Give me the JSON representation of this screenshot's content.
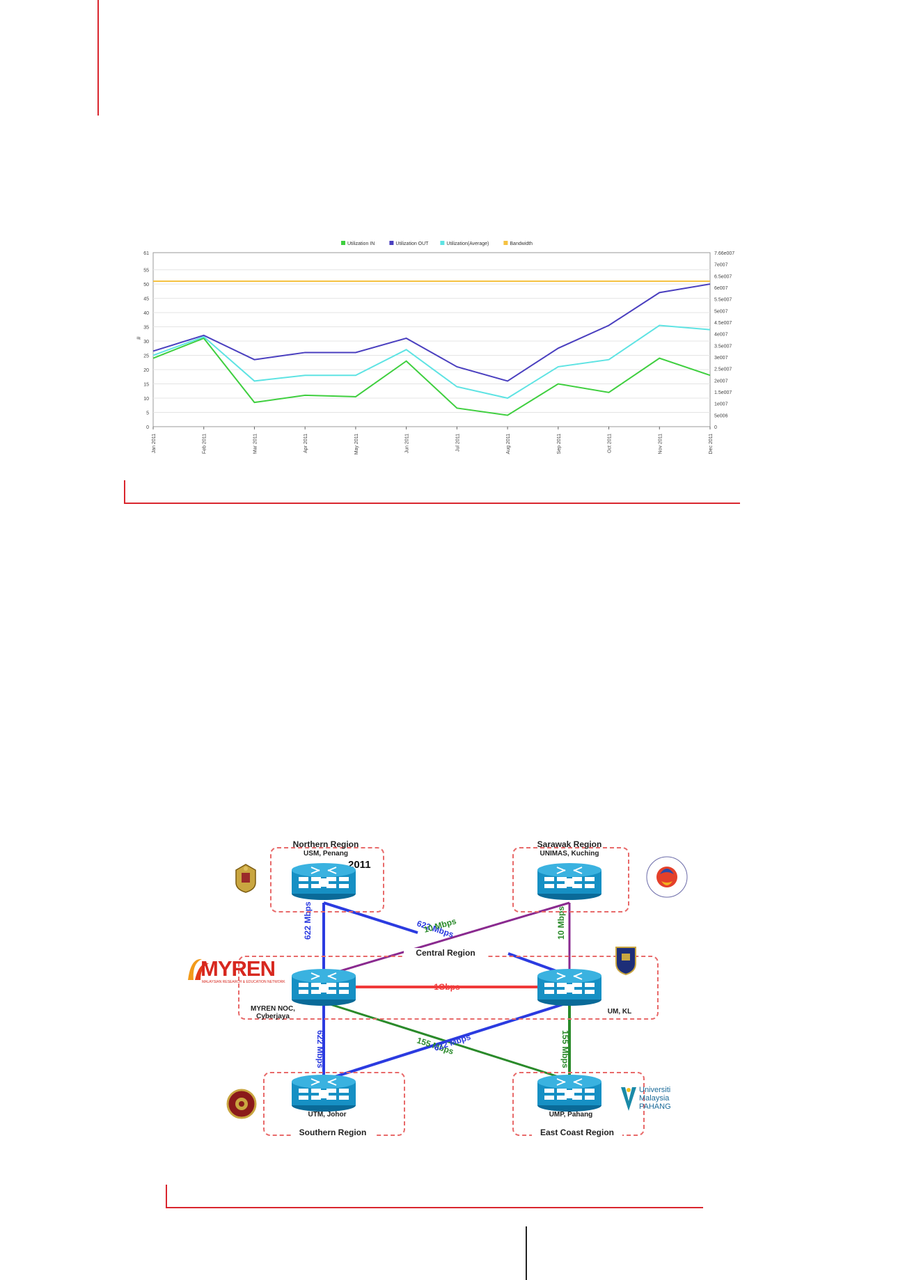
{
  "chart_data": {
    "type": "line",
    "categories": [
      "Jan 2011",
      "Feb 2011",
      "Mar 2011",
      "Apr 2011",
      "May 2011",
      "Jun 2011",
      "Jul 2011",
      "Aug 2011",
      "Sep 2011",
      "Oct 2011",
      "Nov 2011",
      "Dec 2011"
    ],
    "series": [
      {
        "name": "Utilization IN",
        "color": "#3fcf3f",
        "values": [
          24,
          31,
          8.5,
          11,
          10.5,
          23,
          6.5,
          4,
          15,
          12,
          24,
          18
        ]
      },
      {
        "name": "Utilization OUT",
        "color": "#4a3fbf",
        "values": [
          26.5,
          32,
          23.5,
          26,
          26,
          31,
          21,
          16,
          27.5,
          35.5,
          47,
          50
        ]
      },
      {
        "name": "Utilization(Average)",
        "color": "#5ee3e3",
        "values": [
          25,
          31.5,
          16,
          18,
          18,
          27,
          14,
          10,
          21,
          23.5,
          35.5,
          34
        ]
      },
      {
        "name": "Bandwidth",
        "color": "#f5c242",
        "values": [
          51,
          51,
          51,
          51,
          51,
          51,
          51,
          51,
          51,
          51,
          51,
          51
        ]
      }
    ],
    "ylabel": "#",
    "ylim": [
      0,
      61
    ],
    "yticks": [
      "0",
      "5",
      "10",
      "15",
      "20",
      "25",
      "30",
      "35",
      "40",
      "45",
      "50",
      "55",
      "61"
    ],
    "y2ticks": [
      "0",
      "5e006",
      "1e007",
      "1.5e007",
      "2e007",
      "2.5e007",
      "3e007",
      "3.5e007",
      "4e007",
      "4.5e007",
      "5e007",
      "5.5e007",
      "6e007",
      "6.5e007",
      "7e007",
      "7.66e007"
    ],
    "grid": true,
    "legend": "top"
  },
  "diagram": {
    "regions": {
      "northern": {
        "title": "Northern Region",
        "site": "USM, Penang",
        "badge": "2011"
      },
      "sarawak": {
        "title": "Sarawak Region",
        "site": "UNIMAS, Kuching"
      },
      "central": {
        "title": "Central Region"
      },
      "southern": {
        "title": "Southern Region",
        "site": "UTM, Johor"
      },
      "east": {
        "title": "East Coast Region",
        "site": "UMP, Pahang"
      }
    },
    "sites": {
      "noc": "MYREN NOC, Cyberjaya",
      "um": "UM, KL"
    },
    "links": {
      "usm_um": "622 Mbps",
      "unimas_noc": "10 Mbps",
      "usm_noc": "622 Mbps",
      "unimas_um": "10 Mbps",
      "noc_um": "1Gbps",
      "noc_utm": "622 Mbps",
      "noc_ump": "155 Mbps",
      "um_utm": "622 Mbps",
      "um_ump": "155 Mbps"
    },
    "logos": {
      "myren": "MYREN",
      "myren_tagline": "MALAYSIAN RESEARCH & EDUCATION NETWORK",
      "ump": "Universiti Malaysia PAHANG"
    }
  }
}
